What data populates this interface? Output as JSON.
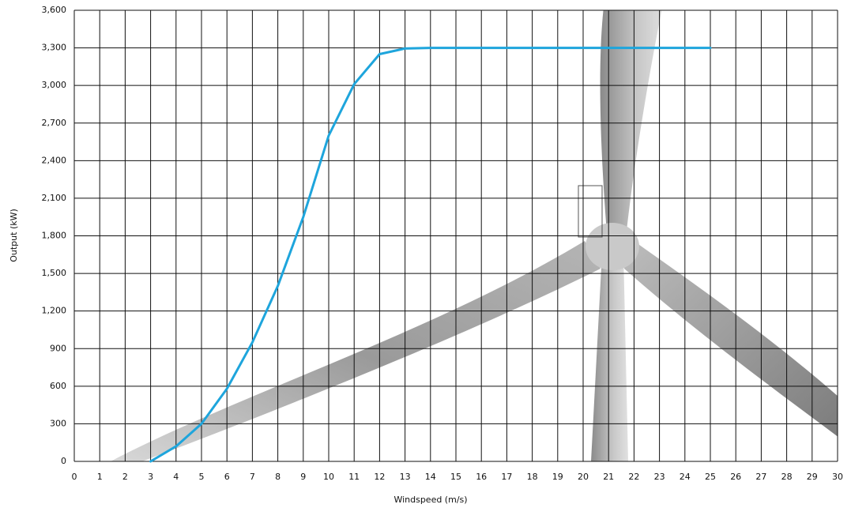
{
  "chart_data": {
    "type": "line",
    "x_label": "Windspeed (m/s)",
    "y_label": "Output (kW)",
    "x": [
      3,
      4,
      5,
      6,
      7,
      8,
      9,
      10,
      11,
      12,
      13,
      14,
      15,
      16,
      17,
      18,
      19,
      20,
      21,
      22,
      23,
      24,
      25
    ],
    "series": [
      {
        "color": "#1ea5dc",
        "values": [
          0,
          120,
          300,
          580,
          950,
          1400,
          1950,
          2600,
          3010,
          3250,
          3295,
          3300,
          3300,
          3300,
          3300,
          3300,
          3300,
          3300,
          3300,
          3300,
          3300,
          3300,
          3300
        ]
      }
    ],
    "xlim": [
      0,
      30
    ],
    "xticks": [
      0,
      1,
      2,
      3,
      4,
      5,
      6,
      7,
      8,
      9,
      10,
      11,
      12,
      13,
      14,
      15,
      16,
      17,
      18,
      19,
      20,
      21,
      22,
      23,
      24,
      25,
      26,
      27,
      28,
      29,
      30
    ],
    "ylim": [
      0,
      3600
    ],
    "yticks": [
      0,
      300,
      600,
      900,
      {
        "value": 1200,
        "label": "1,200"
      },
      {
        "value": 1500,
        "label": "1,500"
      },
      {
        "value": 1800,
        "label": "1,800"
      },
      {
        "value": 2100,
        "label": "2,100"
      },
      {
        "value": 2400,
        "label": "2,400"
      },
      {
        "value": 2700,
        "label": "2,700"
      },
      {
        "value": 3000,
        "label": "3,000"
      },
      {
        "value": 3300,
        "label": "3,300"
      },
      {
        "value": 3600,
        "label": "3,600"
      }
    ],
    "grid": true
  }
}
